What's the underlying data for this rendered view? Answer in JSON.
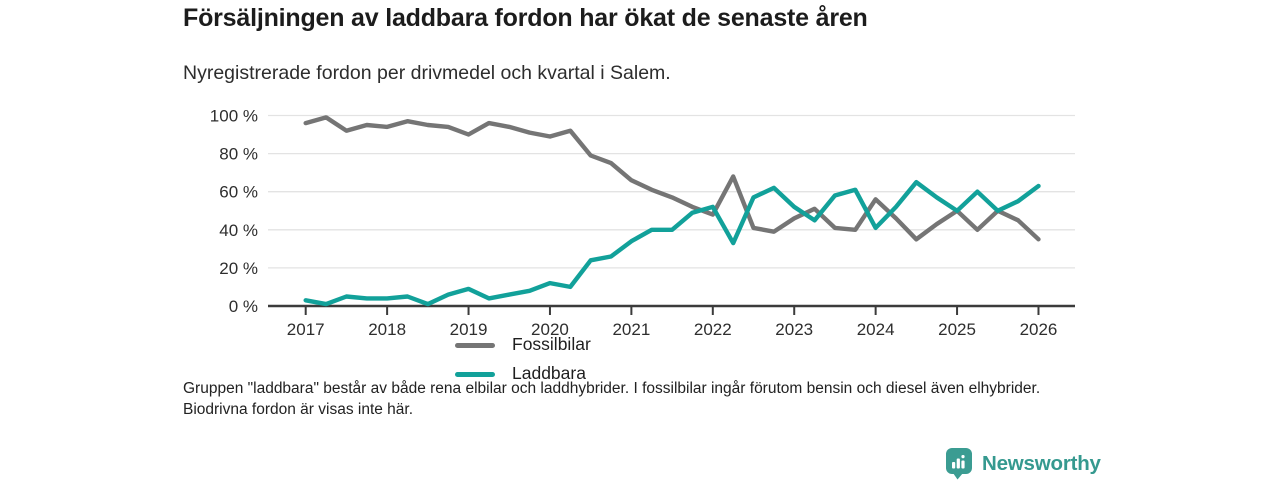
{
  "header": {
    "title": "Försäljningen av laddbara fordon har ökat de senaste åren",
    "subtitle": "Nyregistrerade fordon per drivmedel och kvartal i Salem."
  },
  "chart_data": {
    "type": "line",
    "title": "Försäljningen av laddbara fordon har ökat de senaste åren",
    "subtitle": "Nyregistrerade fordon per drivmedel och kvartal i Salem.",
    "x_unit": "quarter",
    "x_start": "2017 Q1",
    "x_end": "2026 Q1",
    "x_tick_labels": [
      "2017",
      "2018",
      "2019",
      "2020",
      "2021",
      "2022",
      "2023",
      "2024",
      "2025",
      "2026"
    ],
    "y_tick_values": [
      0,
      20,
      40,
      60,
      80,
      100
    ],
    "y_tick_labels": [
      "0 %",
      "20 %",
      "40 %",
      "60 %",
      "80 %",
      "100 %"
    ],
    "ylim": [
      0,
      100
    ],
    "grid": "horizontal",
    "legend_position": "inside-left-bottom",
    "series": [
      {
        "name": "Fossilbilar",
        "color": "#757575",
        "values": [
          96,
          99,
          92,
          95,
          94,
          97,
          95,
          94,
          90,
          96,
          94,
          91,
          89,
          92,
          79,
          75,
          66,
          61,
          57,
          52,
          48,
          68,
          41,
          39,
          46,
          51,
          41,
          40,
          56,
          46,
          35,
          43,
          50,
          40,
          50,
          45,
          35
        ]
      },
      {
        "name": "Laddbara",
        "color": "#12a19a",
        "values": [
          3,
          1,
          5,
          4,
          4,
          5,
          1,
          6,
          9,
          4,
          6,
          8,
          12,
          10,
          24,
          26,
          34,
          40,
          40,
          49,
          52,
          33,
          57,
          62,
          52,
          45,
          58,
          61,
          41,
          52,
          65,
          57,
          50,
          60,
          50,
          55,
          63
        ]
      }
    ]
  },
  "footnote": "Gruppen \"laddbara\" består av både rena elbilar och laddhybrider. I fossilbilar ingår förutom bensin och diesel även elhybrider. Biodrivna fordon är visas inte här.",
  "branding": {
    "logo_text": "Newsworthy",
    "logo_color": "#3b9c92",
    "logo_icon": "bar-chart-speech-bubble-icon"
  },
  "colors": {
    "axis": "#3b3b3b",
    "gridline": "#e3e3e3",
    "background": "#ffffff"
  }
}
